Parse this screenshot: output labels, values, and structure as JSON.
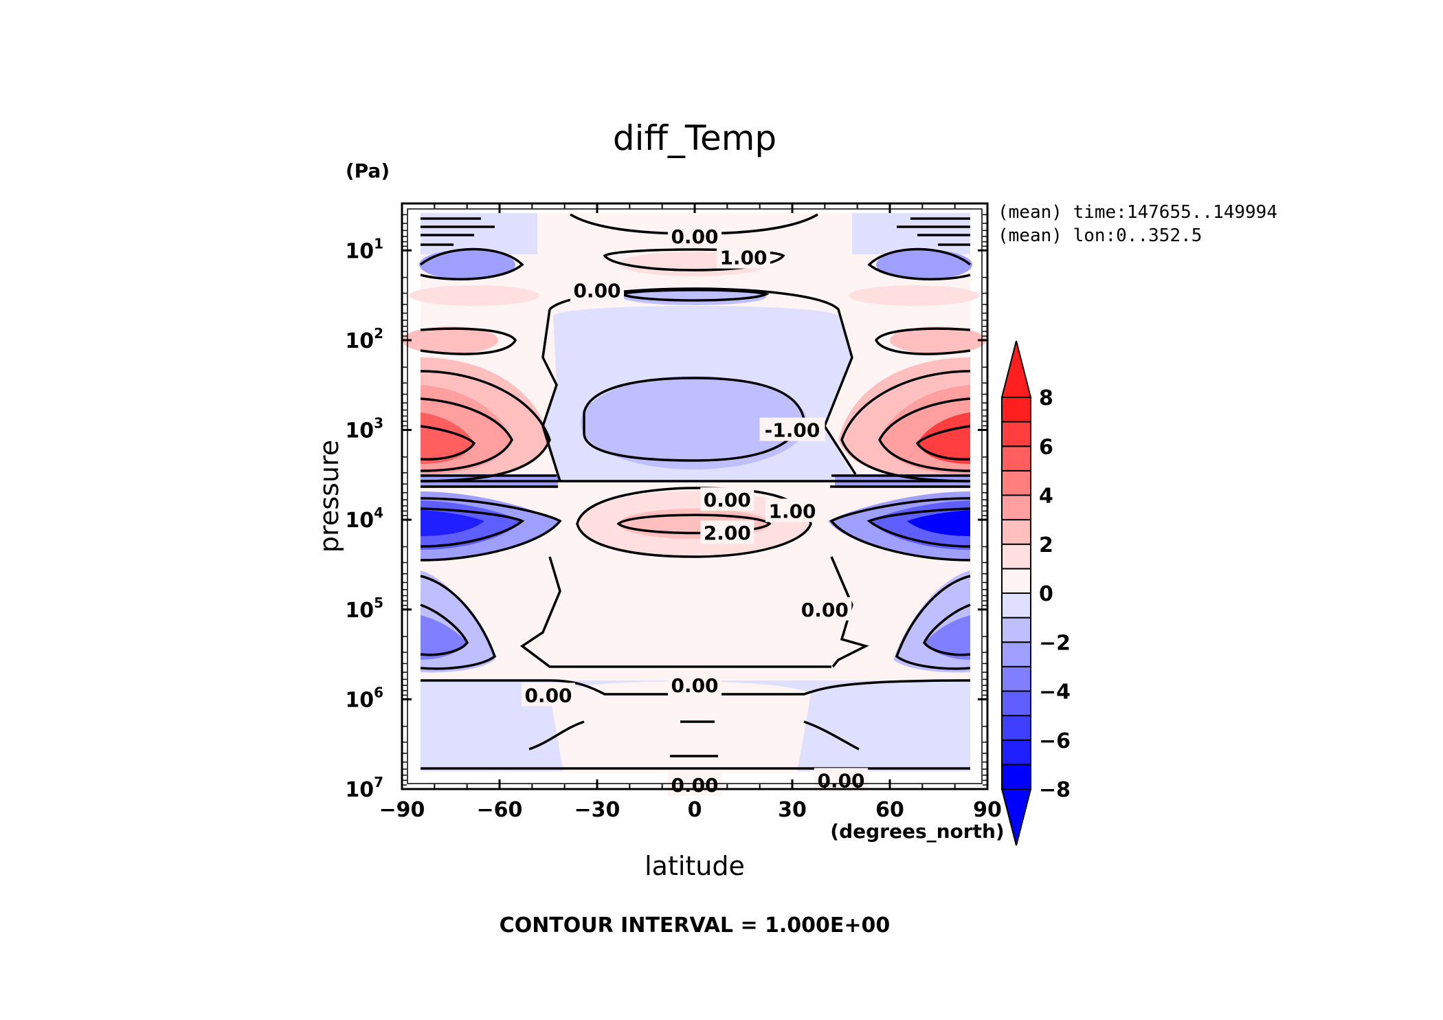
{
  "chart_data": {
    "type": "heatmap",
    "title": "diff_Temp",
    "xlabel": "latitude",
    "ylabel": "pressure",
    "x_units": "(degrees_north)",
    "y_units": "(Pa)",
    "xlim": [
      -90,
      90
    ],
    "ylim": [
      10000000,
      3
    ],
    "y_scale": "log",
    "x_ticks": [
      "−90",
      "−60",
      "−30",
      "0",
      "30",
      "60",
      "90"
    ],
    "x_tick_values": [
      -90,
      -60,
      -30,
      0,
      30,
      60,
      90
    ],
    "y_ticks": [
      {
        "base": "10",
        "exp": "1",
        "value": 10
      },
      {
        "base": "10",
        "exp": "2",
        "value": 100
      },
      {
        "base": "10",
        "exp": "3",
        "value": 1000
      },
      {
        "base": "10",
        "exp": "4",
        "value": 10000
      },
      {
        "base": "10",
        "exp": "5",
        "value": 100000
      },
      {
        "base": "10",
        "exp": "6",
        "value": 1000000
      },
      {
        "base": "10",
        "exp": "7",
        "value": 10000000
      }
    ],
    "annotations": [
      "(mean) time:147655..149994",
      "(mean) lon:0..352.5"
    ],
    "contour_interval_text": "CONTOUR INTERVAL = 1.000E+00",
    "contour_labels": [
      {
        "text": "0.00",
        "x": 0,
        "y": 7
      },
      {
        "text": "1.00",
        "x": 15,
        "y": 12
      },
      {
        "text": "0.00",
        "x": -30,
        "y": 28
      },
      {
        "text": "-1.00",
        "x": 30,
        "y": 1000
      },
      {
        "text": "0.00",
        "x": 10,
        "y": 6000
      },
      {
        "text": "1.00",
        "x": 30,
        "y": 8000
      },
      {
        "text": "2.00",
        "x": 10,
        "y": 14000
      },
      {
        "text": "0.00",
        "x": 40,
        "y": 100000
      },
      {
        "text": "0.00",
        "x": 0,
        "y": 700000
      },
      {
        "text": "0.00",
        "x": -45,
        "y": 900000
      },
      {
        "text": "0.00",
        "x": 0,
        "y": 9000000
      },
      {
        "text": "0.00",
        "x": 45,
        "y": 8000000
      }
    ],
    "colorbar": {
      "levels": [
        -8,
        -7,
        -6,
        -5,
        -4,
        -3,
        -2,
        -1,
        0,
        1,
        2,
        3,
        4,
        5,
        6,
        7,
        8
      ],
      "tick_labels": [
        "8",
        "6",
        "4",
        "2",
        "0",
        "−2",
        "−4",
        "−6",
        "−8"
      ],
      "tick_values": [
        8,
        6,
        4,
        2,
        0,
        -2,
        -4,
        -6,
        -8
      ],
      "colors": [
        "#0000ff",
        "#1f1fff",
        "#3f3fff",
        "#5f5fff",
        "#7f7fff",
        "#9f9fff",
        "#bfbfff",
        "#dfdfff",
        "#fff4f4",
        "#ffdfdf",
        "#ffbfbf",
        "#ff9f9f",
        "#ff7f7f",
        "#ff5f5f",
        "#ff3f3f",
        "#ff1f1f"
      ],
      "extend": "both",
      "low_color": "#0000ff",
      "high_color": "#ff1f1f"
    }
  }
}
